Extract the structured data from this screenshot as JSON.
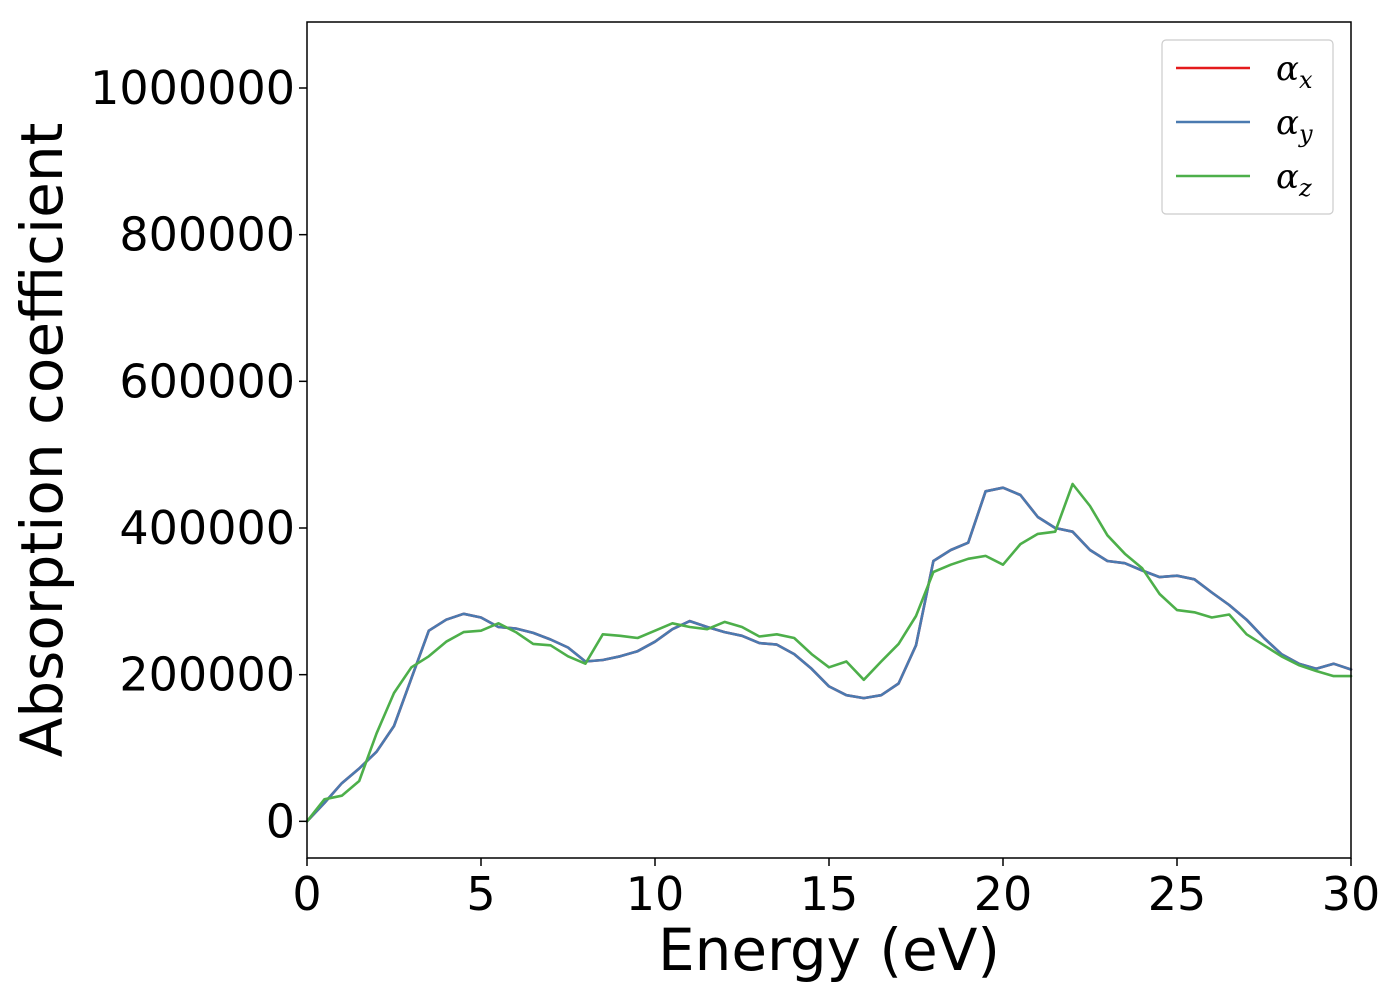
{
  "chart_data": {
    "type": "line",
    "title": "",
    "xlabel": "Energy (eV)",
    "ylabel": "Absorption coefficient",
    "xlim": [
      0,
      30
    ],
    "ylim": [
      -50000,
      1090000
    ],
    "xticks": [
      0,
      5,
      10,
      15,
      20,
      25,
      30
    ],
    "yticks": [
      0,
      200000,
      400000,
      600000,
      800000,
      1000000
    ],
    "grid": false,
    "legend_position": "top-right",
    "series": [
      {
        "name": "α_x",
        "name_main": "α",
        "name_sub": "x",
        "color": "#e41a1c",
        "x": [
          0,
          0.5,
          1,
          1.5,
          2,
          2.5,
          3,
          3.5,
          4,
          4.5,
          5,
          5.5,
          6,
          6.5,
          7,
          7.5,
          8,
          8.5,
          9,
          9.5,
          10,
          10.5,
          11,
          11.5,
          12,
          12.5,
          13,
          13.5,
          14,
          14.5,
          15,
          15.5,
          16,
          16.5,
          17,
          17.5,
          18,
          18.5,
          19,
          19.5,
          20,
          20.5,
          21,
          21.5,
          22,
          22.5,
          23,
          23.5,
          24,
          24.5,
          25,
          25.5,
          26,
          26.5,
          27,
          27.5,
          28,
          28.5,
          29,
          29.5,
          30
        ],
        "values": [
          0,
          25000,
          52000,
          72000,
          95000,
          130000,
          195000,
          260000,
          275000,
          283000,
          278000,
          265000,
          263000,
          257000,
          248000,
          237000,
          218000,
          220000,
          225000,
          232000,
          245000,
          262000,
          273000,
          265000,
          258000,
          253000,
          243000,
          241000,
          228000,
          208000,
          184000,
          172000,
          168000,
          172000,
          188000,
          240000,
          355000,
          370000,
          380000,
          450000,
          455000,
          445000,
          415000,
          400000,
          395000,
          370000,
          355000,
          352000,
          342000,
          333000,
          335000,
          330000,
          312000,
          295000,
          275000,
          250000,
          228000,
          215000,
          208000,
          215000,
          207000
        ]
      },
      {
        "name": "α_y",
        "name_main": "α",
        "name_sub": "y",
        "color": "#4a7ab0",
        "x": [
          0,
          0.5,
          1,
          1.5,
          2,
          2.5,
          3,
          3.5,
          4,
          4.5,
          5,
          5.5,
          6,
          6.5,
          7,
          7.5,
          8,
          8.5,
          9,
          9.5,
          10,
          10.5,
          11,
          11.5,
          12,
          12.5,
          13,
          13.5,
          14,
          14.5,
          15,
          15.5,
          16,
          16.5,
          17,
          17.5,
          18,
          18.5,
          19,
          19.5,
          20,
          20.5,
          21,
          21.5,
          22,
          22.5,
          23,
          23.5,
          24,
          24.5,
          25,
          25.5,
          26,
          26.5,
          27,
          27.5,
          28,
          28.5,
          29,
          29.5,
          30
        ],
        "values": [
          0,
          25000,
          52000,
          72000,
          95000,
          130000,
          195000,
          260000,
          275000,
          283000,
          278000,
          265000,
          263000,
          257000,
          248000,
          237000,
          218000,
          220000,
          225000,
          232000,
          245000,
          262000,
          273000,
          265000,
          258000,
          253000,
          243000,
          241000,
          228000,
          208000,
          184000,
          172000,
          168000,
          172000,
          188000,
          240000,
          355000,
          370000,
          380000,
          450000,
          455000,
          445000,
          415000,
          400000,
          395000,
          370000,
          355000,
          352000,
          342000,
          333000,
          335000,
          330000,
          312000,
          295000,
          275000,
          250000,
          228000,
          215000,
          208000,
          215000,
          207000
        ]
      },
      {
        "name": "α_z",
        "name_main": "α",
        "name_sub": "z",
        "color": "#4daf4a",
        "x": [
          0,
          0.5,
          1,
          1.5,
          2,
          2.5,
          3,
          3.5,
          4,
          4.5,
          5,
          5.5,
          6,
          6.5,
          7,
          7.5,
          8,
          8.5,
          9,
          9.5,
          10,
          10.5,
          11,
          11.5,
          12,
          12.5,
          13,
          13.5,
          14,
          14.5,
          15,
          15.5,
          16,
          16.5,
          17,
          17.5,
          18,
          18.5,
          19,
          19.5,
          20,
          20.5,
          21,
          21.5,
          22,
          22.5,
          23,
          23.5,
          24,
          24.5,
          25,
          25.5,
          26,
          26.5,
          27,
          27.5,
          28,
          28.5,
          29,
          29.5,
          30
        ],
        "values": [
          0,
          30000,
          35000,
          55000,
          120000,
          175000,
          210000,
          225000,
          245000,
          258000,
          260000,
          270000,
          258000,
          242000,
          240000,
          225000,
          215000,
          255000,
          253000,
          250000,
          260000,
          270000,
          265000,
          262000,
          272000,
          265000,
          252000,
          255000,
          250000,
          228000,
          210000,
          218000,
          193000,
          218000,
          242000,
          280000,
          340000,
          350000,
          358000,
          362000,
          350000,
          378000,
          392000,
          395000,
          460000,
          430000,
          390000,
          365000,
          345000,
          310000,
          288000,
          285000,
          278000,
          282000,
          255000,
          240000,
          225000,
          213000,
          205000,
          198000,
          198000
        ]
      }
    ]
  }
}
